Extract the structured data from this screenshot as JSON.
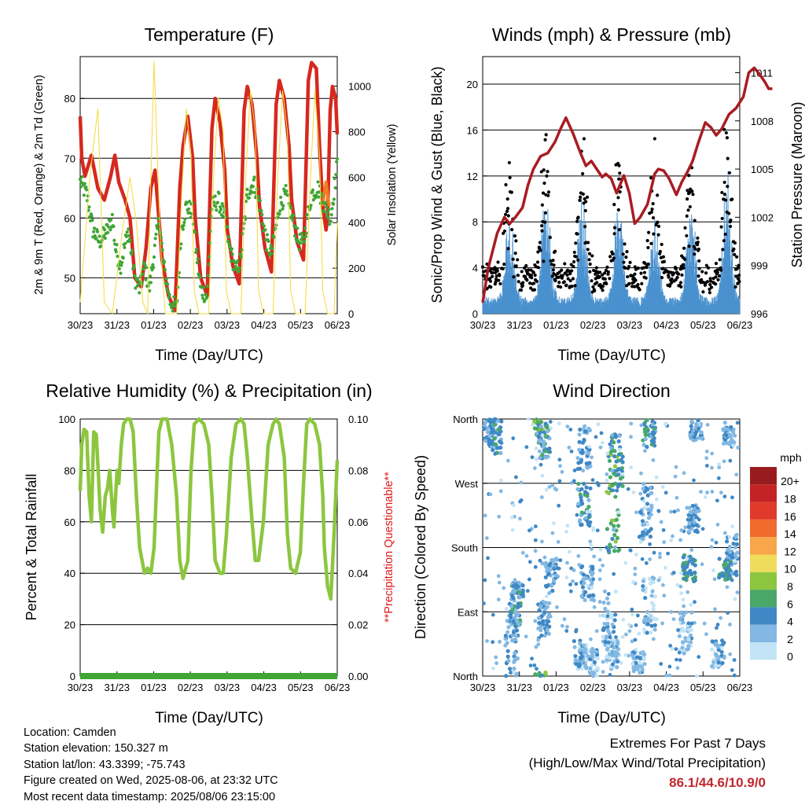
{
  "x_ticks": [
    "30/23",
    "31/23",
    "01/23",
    "02/23",
    "03/23",
    "04/23",
    "05/23",
    "06/23"
  ],
  "chart_data": [
    {
      "type": "line",
      "title": "Temperature (F)",
      "xlabel": "Time (Day/UTC)",
      "ylabel_left": "2m & 9m T (Red, Orange) & 2m Td (Green)",
      "ylabel_right": "Solar Insolation (Yellow)",
      "ylim_left": [
        44,
        87
      ],
      "yticks_left": [
        50,
        60,
        70,
        80
      ],
      "ylim_right": [
        0,
        1130
      ],
      "yticks_right": [
        0,
        200,
        400,
        600,
        800,
        1000
      ],
      "series": [
        {
          "color": "#d6281f",
          "x_days": [
            0,
            0.05,
            0.15,
            0.35,
            0.55,
            0.75,
            0.95,
            1.08,
            1.2,
            1.4,
            1.55,
            1.7,
            1.9,
            2.05,
            2.2,
            2.33,
            2.45,
            2.55,
            2.75,
            2.95,
            3.1,
            3.2,
            3.35,
            3.5,
            3.58,
            3.75,
            3.95,
            4.1,
            4.2,
            4.35,
            4.5,
            4.58,
            4.75,
            4.95,
            5.1,
            5.2,
            5.35,
            5.5,
            5.58,
            5.75,
            5.95,
            6.1,
            6.2,
            6.35,
            6.5,
            6.58,
            6.75,
            6.95,
            7.1,
            7.2,
            7.35,
            7.45,
            7.55,
            7.65,
            7.7,
            7.78,
            7.85,
            7.95,
            8.0
          ],
          "values": [
            77,
            70,
            67,
            70.5,
            65,
            63,
            67,
            70.5,
            66,
            63,
            60,
            50,
            48.5,
            55,
            65,
            68,
            60,
            53,
            47,
            44.5,
            65,
            72,
            77,
            70,
            60,
            50,
            47,
            75,
            80,
            76,
            68,
            58,
            52,
            49,
            78,
            82,
            79,
            70,
            62,
            55,
            51,
            79,
            83,
            80,
            72,
            63,
            56,
            53,
            83,
            86,
            85,
            72,
            62,
            58,
            60,
            78,
            82,
            80,
            74
          ]
        },
        {
          "color": "#f07f22",
          "x_days": [
            7.55,
            7.6,
            7.65,
            7.7,
            7.75
          ],
          "values": [
            62,
            64,
            66,
            64,
            62
          ]
        },
        {
          "color": "#3fa535",
          "x_days": [
            0,
            0.2,
            0.4,
            0.6,
            0.85,
            1.0,
            1.1,
            1.25,
            1.5,
            1.7,
            1.85,
            2.0,
            2.15,
            2.3,
            2.45,
            2.6,
            2.8,
            3.0,
            3.15,
            3.3,
            3.5,
            3.6,
            3.75,
            3.95,
            4.1,
            4.3,
            4.5,
            4.65,
            4.85,
            5.0,
            5.2,
            5.4,
            5.6,
            5.8,
            5.95,
            6.2,
            6.4,
            6.6,
            6.8,
            6.95,
            7.2,
            7.4,
            7.6,
            7.8,
            8.0
          ],
          "values": [
            66,
            64,
            58,
            56,
            58,
            60,
            55,
            52,
            58,
            50,
            48,
            52,
            48,
            54,
            60,
            52,
            46,
            45,
            58,
            62,
            61,
            55,
            48,
            47,
            62,
            63,
            60,
            55,
            51,
            53,
            64,
            66,
            62,
            56,
            54,
            62,
            64,
            60,
            56,
            56,
            64,
            65,
            62,
            60,
            69
          ]
        },
        {
          "color": "#f2dc3a",
          "x_days": [
            0,
            0.3,
            0.55,
            0.75,
            1.0,
            1.3,
            1.55,
            1.75,
            1.95,
            2.1,
            2.2,
            2.3,
            2.35,
            2.5,
            2.65,
            2.85,
            3.0,
            3.15,
            3.3,
            3.45,
            3.55,
            3.7,
            3.9,
            4.0,
            4.15,
            4.3,
            4.45,
            4.55,
            4.7,
            4.9,
            5.0,
            5.15,
            5.3,
            5.45,
            5.55,
            5.7,
            5.9,
            6.0,
            6.15,
            6.3,
            6.45,
            6.55,
            6.7,
            6.9,
            7.0,
            7.15,
            7.3,
            7.45,
            7.55,
            7.7,
            7.9,
            8.0
          ],
          "values": [
            50,
            600,
            900,
            50,
            0,
            350,
            600,
            400,
            50,
            0,
            600,
            1110,
            900,
            300,
            0,
            0,
            0,
            500,
            900,
            700,
            100,
            0,
            0,
            0,
            600,
            950,
            800,
            100,
            0,
            0,
            0,
            600,
            980,
            800,
            100,
            0,
            0,
            0,
            600,
            980,
            800,
            100,
            0,
            0,
            0,
            550,
            980,
            700,
            100,
            0,
            0,
            400
          ]
        }
      ]
    },
    {
      "type": "line",
      "title": "Winds (mph) & Pressure (mb)",
      "xlabel": "Time (Day/UTC)",
      "ylabel_left": "Sonic/Prop Wind & Gust (Blue, Black)",
      "ylabel_right": "Station Pressure (Maroon)",
      "ylim_left": [
        0,
        22.4
      ],
      "yticks_left": [
        0,
        4,
        8,
        12,
        16,
        20
      ],
      "ylim_right": [
        996,
        1012
      ],
      "yticks_right": [
        996,
        999,
        1002,
        1005,
        1008,
        1011
      ],
      "series": [
        {
          "color": "#a81c22",
          "x_days": [
            0,
            0.15,
            0.4,
            0.6,
            0.75,
            0.9,
            1.1,
            1.25,
            1.4,
            1.6,
            1.8,
            2.0,
            2.15,
            2.3,
            2.5,
            2.7,
            2.85,
            3.0,
            3.15,
            3.3,
            3.4,
            3.55,
            3.7,
            3.9,
            4.05,
            4.2,
            4.35,
            4.55,
            4.75,
            4.85,
            5.0,
            5.15,
            5.35,
            5.5,
            5.65,
            5.8,
            5.95,
            6.15,
            6.3,
            6.45,
            6.6,
            6.8,
            7.0,
            7.2,
            7.35,
            7.5,
            7.65,
            7.8,
            7.9,
            8.0
          ],
          "values": [
            996.7,
            998.8,
            1001,
            1002,
            1001.6,
            1002,
            1002.6,
            1004,
            1005,
            1005.8,
            1006,
            1006.7,
            1007.5,
            1008.2,
            1007.2,
            1006,
            1005.2,
            1005.5,
            1005,
            1004.5,
            1004.7,
            1004.4,
            1003.5,
            1004.6,
            1003.5,
            1001.6,
            1002,
            1002.8,
            1004.7,
            1005,
            1004.9,
            1004.4,
            1003.4,
            1004.2,
            1004.8,
            1005.5,
            1006.6,
            1007.9,
            1007.6,
            1007.1,
            1007.5,
            1008.4,
            1008.8,
            1009.5,
            1011,
            1011.3,
            1010.9,
            1010.4,
            1010,
            1010
          ]
        },
        {
          "color": "#4a91cf",
          "x_days": [],
          "values": []
        },
        {
          "color": "#000000",
          "x_days": [],
          "values": []
        }
      ]
    },
    {
      "type": "line",
      "title": "Relative Humidity (%) & Precipitation (in)",
      "xlabel": "Time (Day/UTC)",
      "ylabel_left": "Percent & Total Rainfall",
      "ylabel_right": "**Precipitation Questionable**",
      "ylim_left": [
        0,
        100
      ],
      "yticks_left": [
        0,
        20,
        40,
        60,
        80,
        100
      ],
      "ylim_right": [
        0,
        0.1
      ],
      "yticks_right": [
        "0.00",
        "0.02",
        "0.04",
        "0.06",
        "0.08",
        "0.10"
      ],
      "series": [
        {
          "color": "#8cc63f",
          "x_days": [
            0,
            0.05,
            0.12,
            0.2,
            0.28,
            0.35,
            0.42,
            0.5,
            0.56,
            0.62,
            0.7,
            0.78,
            0.85,
            0.92,
            1.0,
            1.05,
            1.1,
            1.15,
            1.2,
            1.28,
            1.35,
            1.45,
            1.55,
            1.65,
            1.75,
            1.85,
            2.0,
            2.1,
            2.2,
            2.3,
            2.38,
            2.45,
            2.55,
            2.7,
            2.85,
            3.0,
            3.1,
            3.2,
            3.35,
            3.45,
            3.55,
            3.7,
            3.85,
            4.0,
            4.1,
            4.2,
            4.35,
            4.45,
            4.55,
            4.7,
            4.85,
            5.0,
            5.1,
            5.2,
            5.35,
            5.45,
            5.55,
            5.7,
            5.85,
            6.0,
            6.1,
            6.2,
            6.35,
            6.45,
            6.55,
            6.7,
            6.85,
            6.95,
            7.05,
            7.15,
            7.3,
            7.45,
            7.55,
            7.6,
            7.7,
            7.8,
            7.9,
            8.0
          ],
          "values": [
            72,
            90,
            96,
            95,
            70,
            60,
            95,
            94,
            80,
            65,
            56,
            70,
            73,
            80,
            65,
            58,
            70,
            80,
            75,
            90,
            98,
            100,
            100,
            95,
            70,
            50,
            40,
            42,
            40,
            50,
            75,
            95,
            100,
            100,
            90,
            70,
            45,
            38,
            45,
            80,
            98,
            100,
            98,
            90,
            70,
            45,
            40,
            40,
            55,
            85,
            98,
            100,
            98,
            85,
            60,
            45,
            45,
            60,
            90,
            98,
            100,
            98,
            85,
            55,
            42,
            40,
            48,
            75,
            98,
            100,
            98,
            90,
            70,
            50,
            35,
            30,
            55,
            84
          ]
        },
        {
          "color": "#3fa535",
          "x_days": [
            0,
            8
          ],
          "values": [
            0,
            0
          ]
        }
      ]
    },
    {
      "type": "scatter",
      "title": "Wind Direction",
      "xlabel": "Time (Day/UTC)",
      "ylabel": "Direction (Colored By Speed)",
      "yticks": [
        "North",
        "West",
        "South",
        "East",
        "North"
      ],
      "colorbar": {
        "unit": "mph",
        "labels": [
          "20+",
          "18",
          "16",
          "14",
          "12",
          "10",
          "8",
          "6",
          "4",
          "2",
          "0"
        ],
        "colors": [
          "#981c1e",
          "#c42326",
          "#e03a2c",
          "#ef6b2e",
          "#f7a64a",
          "#f0dc5c",
          "#8cc63f",
          "#49a868",
          "#3f88c5",
          "#82b8e3",
          "#c3e4f6"
        ]
      }
    }
  ],
  "footer": {
    "location": "Location: Camden",
    "elevation": "Station elevation: 150.327 m",
    "latlon": "Station lat/lon: 43.3399; -75.743",
    "created": "Figure created on Wed, 2025-08-06, at 23:32 UTC",
    "recent": "Most recent data timestamp: 2025/08/06 23:15:00"
  },
  "extremes": {
    "title": "Extremes For Past 7 Days",
    "subtitle": "(High/Low/Max Wind/Total Precipitation)",
    "values": "86.1/44.6/10.9/0"
  }
}
